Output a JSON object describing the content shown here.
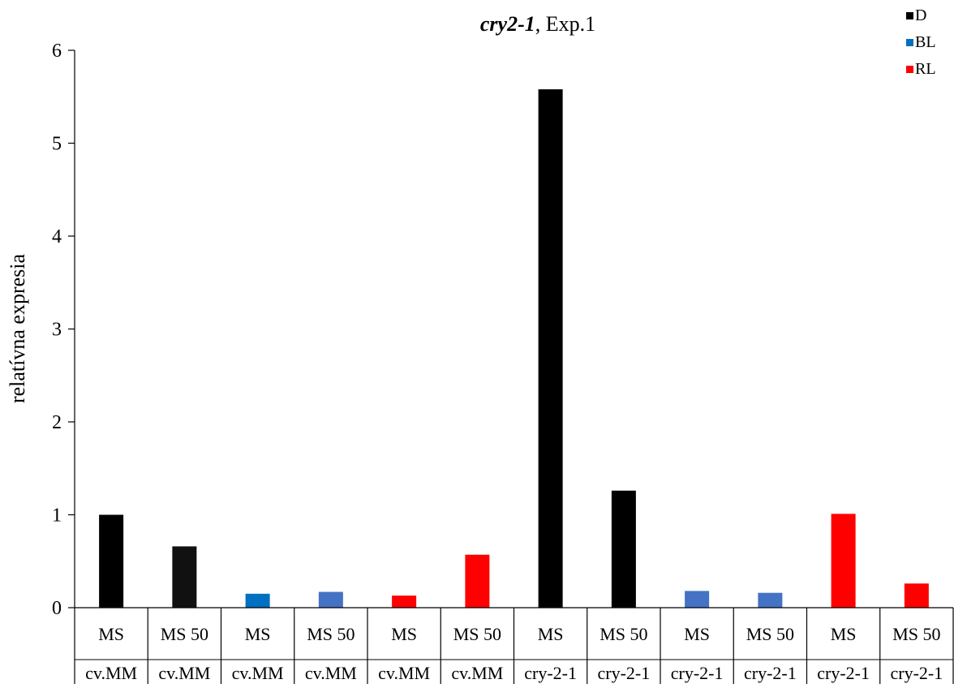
{
  "chart_data": {
    "type": "bar",
    "title": {
      "bold_italic": "cry2-1",
      "rest": ", Exp.1"
    },
    "ylabel": "relatívna expresia",
    "xlabel": "",
    "ylim": [
      0,
      6
    ],
    "yticks": [
      0,
      1,
      2,
      3,
      4,
      5,
      6
    ],
    "grid": false,
    "legend_position": "top-right",
    "legend": [
      {
        "label": "D",
        "color": "#000000"
      },
      {
        "label": "BL",
        "color": "#0070C0"
      },
      {
        "label": "RL",
        "color": "#FF0000"
      }
    ],
    "categories": [
      {
        "treatment": "MS",
        "genotype": "cv.MM"
      },
      {
        "treatment": "MS 50",
        "genotype": "cv.MM"
      },
      {
        "treatment": "MS",
        "genotype": "cv.MM"
      },
      {
        "treatment": "MS 50",
        "genotype": "cv.MM"
      },
      {
        "treatment": "MS",
        "genotype": "cv.MM"
      },
      {
        "treatment": "MS 50",
        "genotype": "cv.MM"
      },
      {
        "treatment": "MS",
        "genotype": "cry-2-1"
      },
      {
        "treatment": "MS 50",
        "genotype": "cry-2-1"
      },
      {
        "treatment": "MS",
        "genotype": "cry-2-1"
      },
      {
        "treatment": "MS 50",
        "genotype": "cry-2-1"
      },
      {
        "treatment": "MS",
        "genotype": "cry-2-1"
      },
      {
        "treatment": "MS 50",
        "genotype": "cry-2-1"
      }
    ],
    "values": [
      1.0,
      0.66,
      0.15,
      0.17,
      0.13,
      0.57,
      5.58,
      1.26,
      0.18,
      0.16,
      1.01,
      0.26
    ],
    "bar_colors": [
      "#000000",
      "#111111",
      "#0070C0",
      "#4472C4",
      "#FF0000",
      "#FF0000",
      "#000000",
      "#000000",
      "#4472C4",
      "#4472C4",
      "#FF0000",
      "#FF0000"
    ]
  }
}
